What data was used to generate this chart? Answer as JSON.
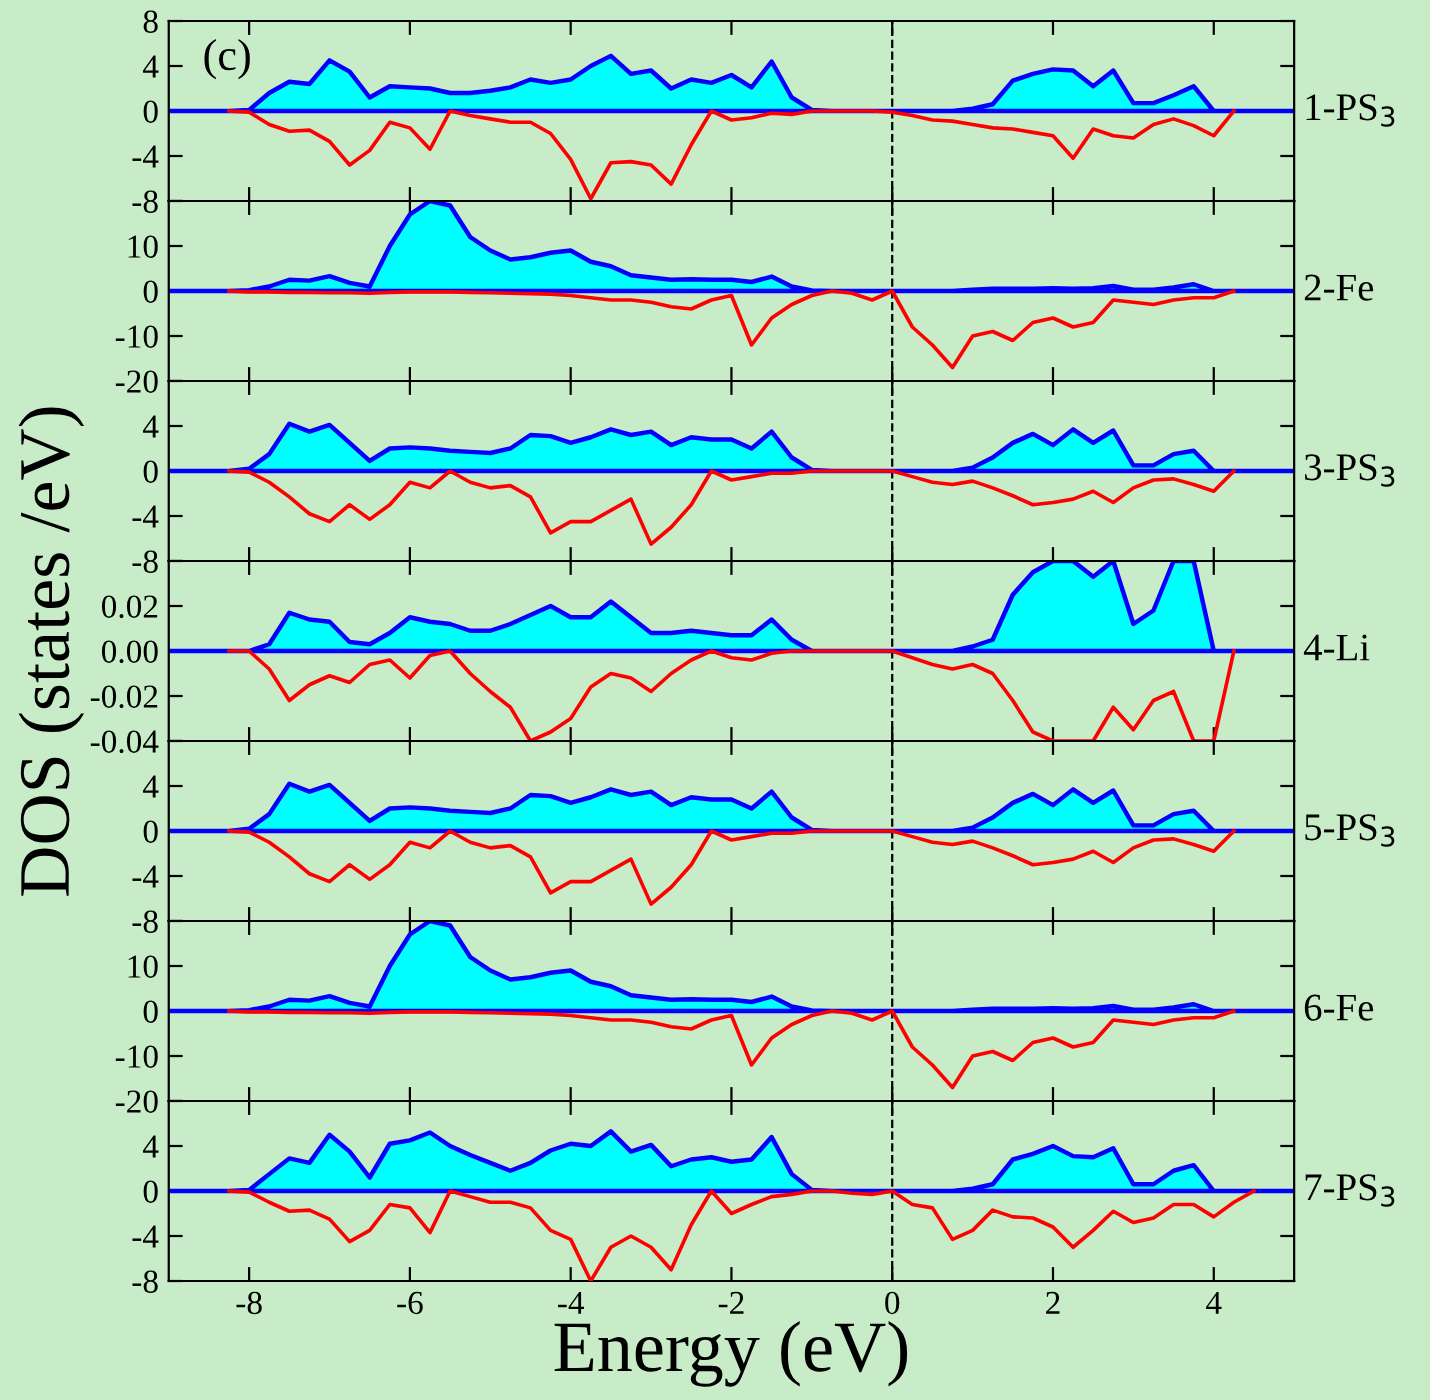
{
  "chart_data": [
    {
      "type": "area",
      "title": "1-PS$_{3}$",
      "annotations": [
        "(c)"
      ],
      "tick_labels": "y",
      "legend": false,
      "grid": false,
      "x": [
        -9,
        -8.75,
        -8.5,
        -8.25,
        -8,
        -7.75,
        -7.5,
        -7.25,
        -7,
        -6.75,
        -6.5,
        -6.25,
        -6,
        -5.75,
        -5.5,
        -5.25,
        -5,
        -4.75,
        -4.5,
        -4.25,
        -4,
        -3.75,
        -3.5,
        -3.25,
        -3,
        -2.75,
        -2.5,
        -2.25,
        -2,
        -1.75,
        -1.5,
        -1.25,
        -1,
        -0.75,
        -0.5,
        -0.25,
        0,
        0.25,
        0.5,
        0.75,
        1,
        1.25,
        1.5,
        1.75,
        2,
        2.25,
        2.5,
        2.75,
        3,
        3.25,
        3.5,
        3.75,
        4,
        4.25,
        4.5,
        4.75,
        5
      ],
      "xlim": [
        -9,
        5
      ],
      "xticks": [
        -8,
        -6,
        -4,
        -2,
        0,
        2,
        4
      ],
      "ylim": [
        -8,
        8
      ],
      "yticks": [
        -8,
        -4,
        0,
        4,
        8
      ],
      "ref_lines": [
        {
          "axis": "x",
          "value": 0,
          "line_style": "dashed",
          "color": "#000000"
        }
      ],
      "series": [
        {
          "type": "area",
          "color": "#00ffff",
          "values": [
            0,
            0,
            0,
            0,
            0.1,
            1.6,
            2.6,
            2.4,
            4.5,
            3.5,
            1.2,
            2.2,
            2.1,
            2.0,
            1.6,
            1.6,
            1.8,
            2.1,
            2.8,
            2.5,
            2.8,
            4.0,
            4.9,
            3.3,
            3.6,
            2.0,
            2.8,
            2.5,
            3.2,
            2.1,
            4.4,
            1.2,
            0.1,
            0,
            0,
            0,
            0,
            0,
            0,
            0,
            0.2,
            0.6,
            2.7,
            3.3,
            3.7,
            3.6,
            2.2,
            3.6,
            0.7,
            0.7,
            1.4,
            2.2,
            0,
            0,
            0,
            0,
            0
          ]
        },
        {
          "type": "line",
          "color": "#ff0000",
          "values": [
            null,
            null,
            null,
            0,
            -0.1,
            -1.2,
            -1.8,
            -1.7,
            -2.7,
            -4.8,
            -3.5,
            -1.0,
            -1.5,
            -3.4,
            0,
            -0.4,
            -0.7,
            -1.0,
            -1.0,
            -2.0,
            -4.3,
            -7.8,
            -4.6,
            -4.5,
            -4.8,
            -6.5,
            -3.0,
            0,
            -0.8,
            -0.6,
            -0.2,
            -0.3,
            0,
            0,
            0,
            0,
            -0.1,
            -0.4,
            -0.8,
            -0.9,
            -1.2,
            -1.5,
            -1.6,
            -1.9,
            -2.2,
            -4.2,
            -1.6,
            -2.2,
            -2.4,
            -1.2,
            -0.7,
            -1.3,
            -2.2,
            0,
            null,
            null,
            null
          ]
        }
      ]
    },
    {
      "type": "area",
      "title": "2-Fe",
      "tick_labels": "y",
      "legend": false,
      "grid": false,
      "x": [
        -9,
        -8.75,
        -8.5,
        -8.25,
        -8,
        -7.75,
        -7.5,
        -7.25,
        -7,
        -6.75,
        -6.5,
        -6.25,
        -6,
        -5.75,
        -5.5,
        -5.25,
        -5,
        -4.75,
        -4.5,
        -4.25,
        -4,
        -3.75,
        -3.5,
        -3.25,
        -3,
        -2.75,
        -2.5,
        -2.25,
        -2,
        -1.75,
        -1.5,
        -1.25,
        -1,
        -0.75,
        -0.5,
        -0.25,
        0,
        0.25,
        0.5,
        0.75,
        1,
        1.25,
        1.5,
        1.75,
        2,
        2.25,
        2.5,
        2.75,
        3,
        3.25,
        3.5,
        3.75,
        4,
        4.25,
        4.5,
        4.75,
        5
      ],
      "xlim": [
        -9,
        5
      ],
      "xticks": [
        -8,
        -6,
        -4,
        -2,
        0,
        2,
        4
      ],
      "ylim": [
        -20,
        20
      ],
      "yticks": [
        -20,
        -10,
        0,
        10,
        {
          "value": 20,
          "label": null
        }
      ],
      "ref_lines": [
        {
          "axis": "x",
          "value": 0,
          "line_style": "dashed",
          "color": "#000000"
        }
      ],
      "series": [
        {
          "type": "area",
          "color": "#00ffff",
          "values": [
            0,
            0,
            0,
            0,
            0.2,
            1.0,
            2.5,
            2.3,
            3.3,
            1.8,
            1.0,
            10,
            17,
            20,
            19,
            12,
            9,
            7,
            7.5,
            8.5,
            9,
            6.5,
            5.5,
            3.5,
            3.0,
            2.5,
            2.6,
            2.5,
            2.5,
            2.0,
            3.2,
            1.0,
            0.1,
            0,
            0,
            0,
            0,
            0,
            0,
            0,
            0.3,
            0.5,
            0.5,
            0.5,
            0.6,
            0.5,
            0.6,
            1.1,
            0.3,
            0.3,
            0.8,
            1.5,
            0,
            0,
            0,
            0,
            0
          ]
        },
        {
          "type": "line",
          "color": "#ff0000",
          "values": [
            null,
            null,
            null,
            0,
            -0.2,
            -0.2,
            -0.3,
            -0.3,
            -0.4,
            -0.4,
            -0.5,
            -0.3,
            -0.2,
            -0.2,
            -0.2,
            -0.3,
            -0.4,
            -0.5,
            -0.6,
            -0.7,
            -1.0,
            -1.5,
            -2.0,
            -2.0,
            -2.5,
            -3.5,
            -4.0,
            -2.0,
            -1.0,
            -12,
            -6,
            -3,
            -1,
            0,
            -0.5,
            -2,
            0,
            -8,
            -12,
            -17,
            -10,
            -9,
            -11,
            -7,
            -6,
            -8,
            -7,
            -2,
            -2.5,
            -3,
            -2,
            -1.5,
            -1.5,
            0,
            null,
            null,
            null
          ]
        }
      ]
    },
    {
      "type": "area",
      "title": "3-PS$_{3}$",
      "tick_labels": "y",
      "legend": false,
      "grid": false,
      "x": [
        -9,
        -8.75,
        -8.5,
        -8.25,
        -8,
        -7.75,
        -7.5,
        -7.25,
        -7,
        -6.75,
        -6.5,
        -6.25,
        -6,
        -5.75,
        -5.5,
        -5.25,
        -5,
        -4.75,
        -4.5,
        -4.25,
        -4,
        -3.75,
        -3.5,
        -3.25,
        -3,
        -2.75,
        -2.5,
        -2.25,
        -2,
        -1.75,
        -1.5,
        -1.25,
        -1,
        -0.75,
        -0.5,
        -0.25,
        0,
        0.25,
        0.5,
        0.75,
        1,
        1.25,
        1.5,
        1.75,
        2,
        2.25,
        2.5,
        2.75,
        3,
        3.25,
        3.5,
        3.75,
        4,
        4.25,
        4.5,
        4.75,
        5
      ],
      "xlim": [
        -9,
        5
      ],
      "xticks": [
        -8,
        -6,
        -4,
        -2,
        0,
        2,
        4
      ],
      "ylim": [
        -8,
        8
      ],
      "yticks": [
        -8,
        -4,
        0,
        4,
        {
          "value": 8,
          "label": null
        }
      ],
      "ref_lines": [
        {
          "axis": "x",
          "value": 0,
          "line_style": "dashed",
          "color": "#000000"
        }
      ],
      "series": [
        {
          "type": "area",
          "color": "#00ffff",
          "values": [
            0,
            0,
            0,
            0,
            0.2,
            1.5,
            4.2,
            3.5,
            4.1,
            2.5,
            0.9,
            2.0,
            2.1,
            2.0,
            1.8,
            1.7,
            1.6,
            2.0,
            3.2,
            3.1,
            2.5,
            3.0,
            3.7,
            3.2,
            3.5,
            2.3,
            3.0,
            2.8,
            2.8,
            2.0,
            3.5,
            1.2,
            0.1,
            0,
            0,
            0,
            0,
            0,
            0,
            0,
            0.3,
            1.2,
            2.5,
            3.3,
            2.3,
            3.7,
            2.5,
            3.6,
            0.5,
            0.5,
            1.5,
            1.8,
            0,
            0,
            0,
            0,
            0
          ]
        },
        {
          "type": "line",
          "color": "#ff0000",
          "values": [
            null,
            null,
            null,
            0,
            -0.1,
            -1.0,
            -2.3,
            -3.8,
            -4.5,
            -3.0,
            -4.3,
            -3.0,
            -1.0,
            -1.5,
            0,
            -1.0,
            -1.5,
            -1.3,
            -2.3,
            -5.5,
            -4.5,
            -4.5,
            -3.5,
            -2.5,
            -6.5,
            -5.0,
            -3.0,
            0,
            -0.8,
            -0.5,
            -0.2,
            -0.2,
            0,
            0,
            0,
            0,
            0,
            -0.5,
            -1.0,
            -1.2,
            -0.9,
            -1.5,
            -2.2,
            -3.0,
            -2.8,
            -2.5,
            -1.8,
            -2.8,
            -1.5,
            -0.8,
            -0.7,
            -1.2,
            -1.8,
            0,
            null,
            null,
            null
          ]
        }
      ]
    },
    {
      "type": "area",
      "title": "4-Li",
      "ylabel": "DOS (states /eV)",
      "tick_labels": "y",
      "legend": false,
      "grid": false,
      "x": [
        -9,
        -8.75,
        -8.5,
        -8.25,
        -8,
        -7.75,
        -7.5,
        -7.25,
        -7,
        -6.75,
        -6.5,
        -6.25,
        -6,
        -5.75,
        -5.5,
        -5.25,
        -5,
        -4.75,
        -4.5,
        -4.25,
        -4,
        -3.75,
        -3.5,
        -3.25,
        -3,
        -2.75,
        -2.5,
        -2.25,
        -2,
        -1.75,
        -1.5,
        -1.25,
        -1,
        -0.75,
        -0.5,
        -0.25,
        0,
        0.25,
        0.5,
        0.75,
        1,
        1.25,
        1.5,
        1.75,
        2,
        2.25,
        2.5,
        2.75,
        3,
        3.25,
        3.5,
        3.75,
        4,
        4.25,
        4.5,
        4.75,
        5
      ],
      "xlim": [
        -9,
        5
      ],
      "xticks": [
        -8,
        -6,
        -4,
        -2,
        0,
        2,
        4
      ],
      "ylim": [
        -0.04,
        0.04
      ],
      "yticks": [
        -0.04,
        -0.02,
        {
          "value": 0,
          "label": "0.00"
        },
        0.02,
        {
          "value": 0.04,
          "label": null
        }
      ],
      "ref_lines": [
        {
          "axis": "x",
          "value": 0,
          "line_style": "dashed",
          "color": "#000000"
        }
      ],
      "series": [
        {
          "type": "area",
          "color": "#00ffff",
          "values": [
            0,
            0,
            0,
            0,
            0.0,
            0.003,
            0.017,
            0.014,
            0.013,
            0.004,
            0.003,
            0.008,
            0.015,
            0.013,
            0.012,
            0.009,
            0.009,
            0.012,
            0.016,
            0.02,
            0.015,
            0.015,
            0.022,
            0.015,
            0.008,
            0.008,
            0.009,
            0.008,
            0.007,
            0.007,
            0.014,
            0.005,
            0.0,
            0,
            0,
            0,
            0,
            0,
            0,
            0,
            0.002,
            0.005,
            0.025,
            0.035,
            0.04,
            0.04,
            0.033,
            0.04,
            0.012,
            0.018,
            0.04,
            0.04,
            0,
            0,
            0,
            0,
            0
          ]
        },
        {
          "type": "line",
          "color": "#ff0000",
          "values": [
            null,
            null,
            null,
            0,
            0,
            -0.008,
            -0.022,
            -0.015,
            -0.011,
            -0.014,
            -0.006,
            -0.004,
            -0.012,
            -0.002,
            0,
            -0.01,
            -0.018,
            -0.025,
            -0.04,
            -0.036,
            -0.03,
            -0.016,
            -0.01,
            -0.012,
            -0.018,
            -0.01,
            -0.004,
            0,
            -0.003,
            -0.004,
            -0.001,
            0,
            0,
            0,
            0,
            0,
            0,
            -0.003,
            -0.006,
            -0.008,
            -0.006,
            -0.01,
            -0.022,
            -0.036,
            -0.04,
            -0.04,
            -0.04,
            -0.025,
            -0.035,
            -0.022,
            -0.018,
            -0.04,
            -0.04,
            0,
            null,
            null,
            null
          ]
        }
      ]
    },
    {
      "type": "area",
      "title": "5-PS$_{3}$",
      "tick_labels": "y",
      "legend": false,
      "grid": false,
      "x": [
        -9,
        -8.75,
        -8.5,
        -8.25,
        -8,
        -7.75,
        -7.5,
        -7.25,
        -7,
        -6.75,
        -6.5,
        -6.25,
        -6,
        -5.75,
        -5.5,
        -5.25,
        -5,
        -4.75,
        -4.5,
        -4.25,
        -4,
        -3.75,
        -3.5,
        -3.25,
        -3,
        -2.75,
        -2.5,
        -2.25,
        -2,
        -1.75,
        -1.5,
        -1.25,
        -1,
        -0.75,
        -0.5,
        -0.25,
        0,
        0.25,
        0.5,
        0.75,
        1,
        1.25,
        1.5,
        1.75,
        2,
        2.25,
        2.5,
        2.75,
        3,
        3.25,
        3.5,
        3.75,
        4,
        4.25,
        4.5,
        4.75,
        5
      ],
      "xlim": [
        -9,
        5
      ],
      "xticks": [
        -8,
        -6,
        -4,
        -2,
        0,
        2,
        4
      ],
      "ylim": [
        -8,
        8
      ],
      "yticks": [
        -8,
        -4,
        0,
        4,
        {
          "value": 8,
          "label": null
        }
      ],
      "ref_lines": [
        {
          "axis": "x",
          "value": 0,
          "line_style": "dashed",
          "color": "#000000"
        }
      ],
      "series": [
        {
          "type": "area",
          "color": "#00ffff",
          "values": [
            0,
            0,
            0,
            0,
            0.2,
            1.5,
            4.2,
            3.5,
            4.1,
            2.5,
            0.9,
            2.0,
            2.1,
            2.0,
            1.8,
            1.7,
            1.6,
            2.0,
            3.2,
            3.1,
            2.5,
            3.0,
            3.7,
            3.2,
            3.5,
            2.3,
            3.0,
            2.8,
            2.8,
            2.0,
            3.5,
            1.2,
            0.1,
            0,
            0,
            0,
            0,
            0,
            0,
            0,
            0.3,
            1.2,
            2.5,
            3.3,
            2.3,
            3.7,
            2.5,
            3.6,
            0.5,
            0.5,
            1.5,
            1.8,
            0,
            0,
            0,
            0,
            0
          ]
        },
        {
          "type": "line",
          "color": "#ff0000",
          "values": [
            null,
            null,
            null,
            0,
            -0.1,
            -1.0,
            -2.3,
            -3.8,
            -4.5,
            -3.0,
            -4.3,
            -3.0,
            -1.0,
            -1.5,
            0,
            -1.0,
            -1.5,
            -1.3,
            -2.3,
            -5.5,
            -4.5,
            -4.5,
            -3.5,
            -2.5,
            -6.5,
            -5.0,
            -3.0,
            0,
            -0.8,
            -0.5,
            -0.2,
            -0.2,
            0,
            0,
            0,
            0,
            0,
            -0.5,
            -1.0,
            -1.2,
            -0.9,
            -1.5,
            -2.2,
            -3.0,
            -2.8,
            -2.5,
            -1.8,
            -2.8,
            -1.5,
            -0.8,
            -0.7,
            -1.2,
            -1.8,
            0,
            null,
            null,
            null
          ]
        }
      ]
    },
    {
      "type": "area",
      "title": "6-Fe",
      "tick_labels": "y",
      "legend": false,
      "grid": false,
      "x": [
        -9,
        -8.75,
        -8.5,
        -8.25,
        -8,
        -7.75,
        -7.5,
        -7.25,
        -7,
        -6.75,
        -6.5,
        -6.25,
        -6,
        -5.75,
        -5.5,
        -5.25,
        -5,
        -4.75,
        -4.5,
        -4.25,
        -4,
        -3.75,
        -3.5,
        -3.25,
        -3,
        -2.75,
        -2.5,
        -2.25,
        -2,
        -1.75,
        -1.5,
        -1.25,
        -1,
        -0.75,
        -0.5,
        -0.25,
        0,
        0.25,
        0.5,
        0.75,
        1,
        1.25,
        1.5,
        1.75,
        2,
        2.25,
        2.5,
        2.75,
        3,
        3.25,
        3.5,
        3.75,
        4,
        4.25,
        4.5,
        4.75,
        5
      ],
      "xlim": [
        -9,
        5
      ],
      "xticks": [
        -8,
        -6,
        -4,
        -2,
        0,
        2,
        4
      ],
      "ylim": [
        -20,
        20
      ],
      "yticks": [
        -20,
        -10,
        0,
        10,
        {
          "value": 20,
          "label": null
        }
      ],
      "ref_lines": [
        {
          "axis": "x",
          "value": 0,
          "line_style": "dashed",
          "color": "#000000"
        }
      ],
      "series": [
        {
          "type": "area",
          "color": "#00ffff",
          "values": [
            0,
            0,
            0,
            0,
            0.2,
            1.0,
            2.5,
            2.3,
            3.3,
            1.8,
            1.0,
            10,
            17,
            20,
            19,
            12,
            9,
            7,
            7.5,
            8.5,
            9,
            6.5,
            5.5,
            3.5,
            3.0,
            2.5,
            2.6,
            2.5,
            2.5,
            2.0,
            3.2,
            1.0,
            0.1,
            0,
            0,
            0,
            0,
            0,
            0,
            0,
            0.3,
            0.5,
            0.5,
            0.5,
            0.6,
            0.5,
            0.6,
            1.1,
            0.3,
            0.3,
            0.8,
            1.5,
            0,
            0,
            0,
            0,
            0
          ]
        },
        {
          "type": "line",
          "color": "#ff0000",
          "values": [
            null,
            null,
            null,
            0,
            -0.2,
            -0.2,
            -0.3,
            -0.3,
            -0.4,
            -0.4,
            -0.5,
            -0.3,
            -0.2,
            -0.2,
            -0.2,
            -0.3,
            -0.4,
            -0.5,
            -0.6,
            -0.7,
            -1.0,
            -1.5,
            -2.0,
            -2.0,
            -2.5,
            -3.5,
            -4.0,
            -2.0,
            -1.0,
            -12,
            -6,
            -3,
            -1,
            0,
            -0.5,
            -2,
            0,
            -8,
            -12,
            -17,
            -10,
            -9,
            -11,
            -7,
            -6,
            -8,
            -7,
            -2,
            -2.5,
            -3,
            -2,
            -1.5,
            -1.5,
            0,
            null,
            null,
            null
          ]
        }
      ]
    },
    {
      "type": "area",
      "title": "7-PS$_{3}$",
      "xlabel": "Energy (eV)",
      "legend": false,
      "grid": false,
      "x": [
        -9,
        -8.75,
        -8.5,
        -8.25,
        -8,
        -7.75,
        -7.5,
        -7.25,
        -7,
        -6.75,
        -6.5,
        -6.25,
        -6,
        -5.75,
        -5.5,
        -5.25,
        -5,
        -4.75,
        -4.5,
        -4.25,
        -4,
        -3.75,
        -3.5,
        -3.25,
        -3,
        -2.75,
        -2.5,
        -2.25,
        -2,
        -1.75,
        -1.5,
        -1.25,
        -1,
        -0.75,
        -0.5,
        -0.25,
        0,
        0.25,
        0.5,
        0.75,
        1,
        1.25,
        1.5,
        1.75,
        2,
        2.25,
        2.5,
        2.75,
        3,
        3.25,
        3.5,
        3.75,
        4,
        4.25,
        4.5,
        4.75,
        5
      ],
      "xlim": [
        -9,
        5
      ],
      "xticks": [
        -8,
        -6,
        -4,
        -2,
        0,
        2,
        4
      ],
      "ylim": [
        -8,
        8
      ],
      "yticks": [
        -8,
        -4,
        0,
        4,
        {
          "value": 8,
          "label": null
        }
      ],
      "ref_lines": [
        {
          "axis": "x",
          "value": 0,
          "line_style": "dashed",
          "color": "#000000"
        }
      ],
      "series": [
        {
          "type": "area",
          "color": "#00ffff",
          "values": [
            0,
            0,
            0,
            0,
            0.1,
            1.5,
            2.9,
            2.5,
            5.0,
            3.5,
            1.2,
            4.2,
            4.5,
            5.2,
            4.0,
            3.2,
            2.5,
            1.8,
            2.5,
            3.6,
            4.2,
            4.0,
            5.3,
            3.5,
            4.1,
            2.2,
            2.8,
            3.0,
            2.6,
            2.8,
            4.8,
            1.5,
            0.1,
            0,
            0,
            0,
            0,
            0,
            0,
            0,
            0.2,
            0.6,
            2.8,
            3.3,
            4.0,
            3.1,
            3.0,
            3.8,
            0.6,
            0.6,
            1.8,
            2.3,
            0,
            0,
            0,
            0,
            0
          ]
        },
        {
          "type": "line",
          "color": "#ff0000",
          "values": [
            null,
            null,
            null,
            0,
            -0.1,
            -1.0,
            -1.8,
            -1.7,
            -2.5,
            -4.5,
            -3.5,
            -1.2,
            -1.5,
            -3.7,
            0,
            -0.5,
            -1.0,
            -1.0,
            -1.5,
            -3.5,
            -4.3,
            -8.0,
            -5.0,
            -4.0,
            -5.0,
            -7.0,
            -3.0,
            0,
            -2.0,
            -1.2,
            -0.5,
            -0.3,
            0,
            0,
            -0.2,
            -0.3,
            0,
            -1.2,
            -1.5,
            -4.3,
            -3.5,
            -1.7,
            -2.3,
            -2.4,
            -3.2,
            -5.0,
            -3.5,
            -1.8,
            -2.8,
            -2.4,
            -1.2,
            -1.2,
            -2.3,
            -1.0,
            0,
            null,
            null
          ]
        }
      ]
    }
  ]
}
